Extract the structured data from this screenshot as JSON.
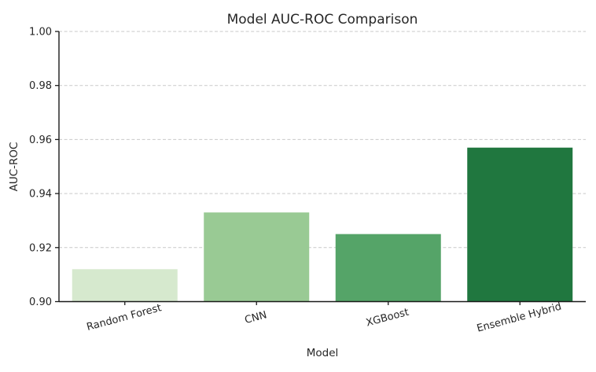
{
  "chart_data": {
    "type": "bar",
    "title": "Model AUC-ROC Comparison",
    "xlabel": "Model",
    "ylabel": "AUC-ROC",
    "categories": [
      "Random Forest",
      "CNN",
      "XGBoost",
      "Ensemble Hybrid"
    ],
    "values": [
      0.912,
      0.933,
      0.925,
      0.957
    ],
    "bar_colors": [
      "#d6e9ce",
      "#99ca94",
      "#55a468",
      "#20773f"
    ],
    "ylim": [
      0.9,
      1.0
    ],
    "yticks": [
      "0.90",
      "0.92",
      "0.94",
      "0.96",
      "0.98",
      "1.00"
    ],
    "x_tick_rotation_deg": 15,
    "grid": "horizontal-dashed",
    "gridline_color": "#c9c9c9",
    "spine_color": "#1a1a1a",
    "text_color": "#262626",
    "legend": "none",
    "background_color": "#ffffff"
  }
}
